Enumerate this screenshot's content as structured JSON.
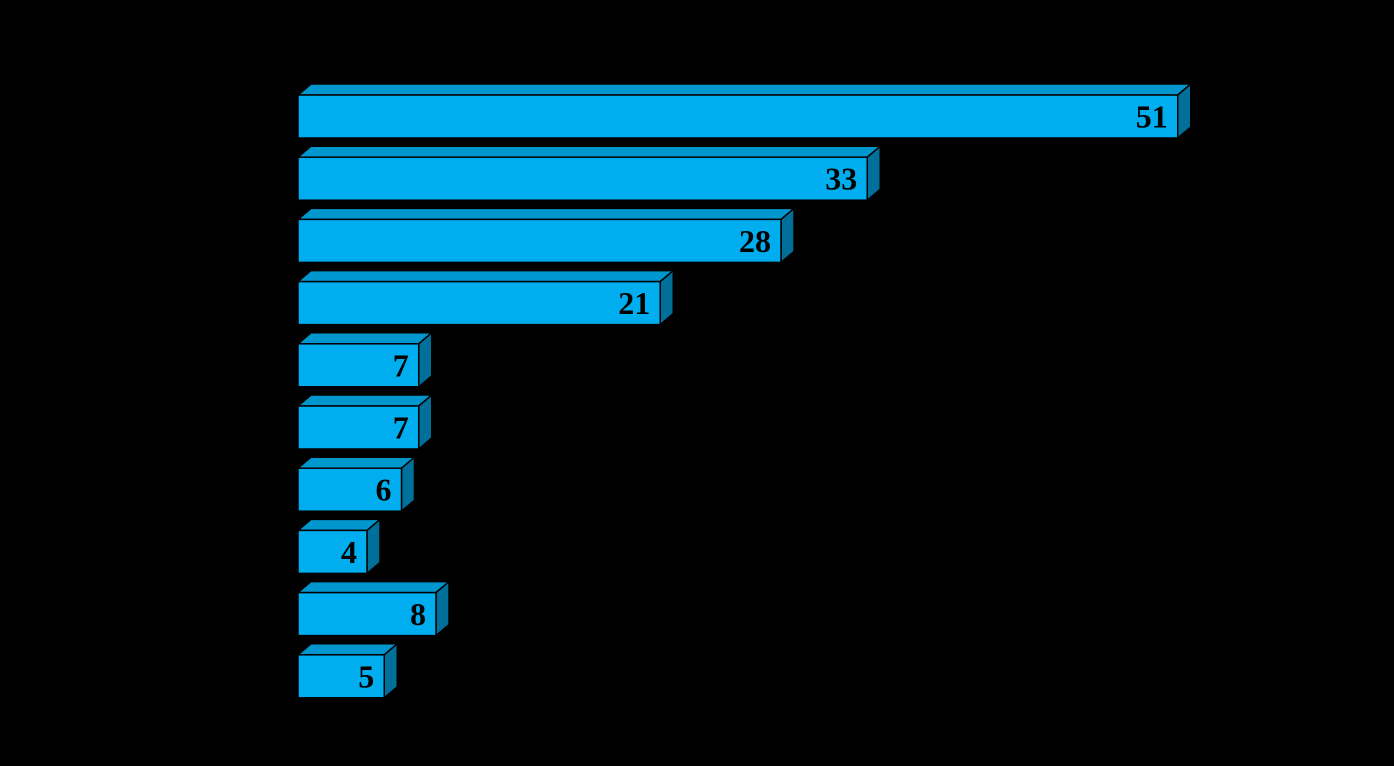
{
  "chart_data": {
    "type": "bar",
    "orientation": "horizontal",
    "style": "3d",
    "values": [
      51,
      33,
      28,
      21,
      7,
      7,
      6,
      4,
      8,
      5
    ],
    "data_labels": [
      "51",
      "33",
      "28",
      "21",
      "7",
      "7",
      "6",
      "4",
      "8",
      "5"
    ],
    "xlim": [
      0,
      51
    ],
    "grid": false,
    "legend": "none",
    "colors": {
      "background": "#000000",
      "bar_front": "#00AEEF",
      "bar_top": "#0097CF",
      "bar_side": "#00709A",
      "outline": "#000000",
      "label": "#000000"
    }
  }
}
